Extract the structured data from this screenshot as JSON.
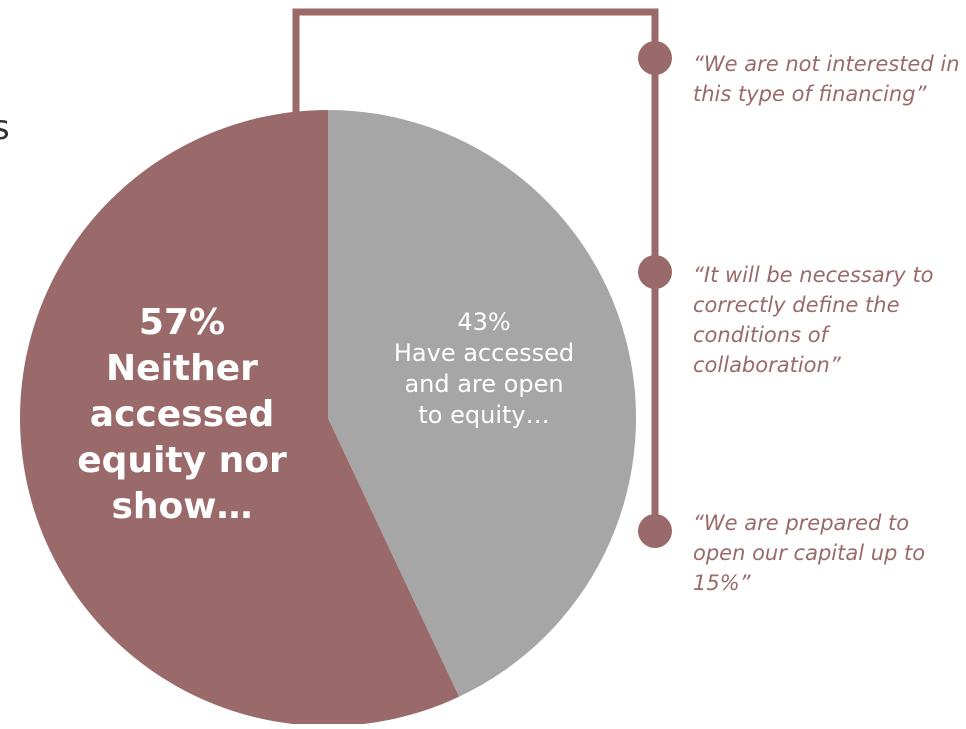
{
  "chart_data": {
    "type": "pie",
    "slices": [
      {
        "label_lines": [
          "57%",
          "Neither",
          "accessed",
          "equity nor",
          "show…"
        ],
        "value": 57,
        "color": "#9a6a6a",
        "label_color": "#ffffff",
        "label_bold": true
      },
      {
        "label_lines": [
          "43%",
          "Have accessed",
          "and are open",
          "to equity…"
        ],
        "value": 43,
        "color": "#a6a6a6",
        "label_color": "#ffffff",
        "label_bold": false
      }
    ],
    "start_angle_deg": 0,
    "direction": "clockwise"
  },
  "quotes": [
    "“We are not interested in this type of financing”",
    "“It will be necessary to correctly define the conditions of collaboration”",
    "“We are prepared to open our capital up to 15%”"
  ],
  "colors": {
    "accent": "#9a6a6a",
    "quote_text": "#9a6a6a",
    "connector": "#9a6a6a"
  },
  "edge_mark": "s"
}
